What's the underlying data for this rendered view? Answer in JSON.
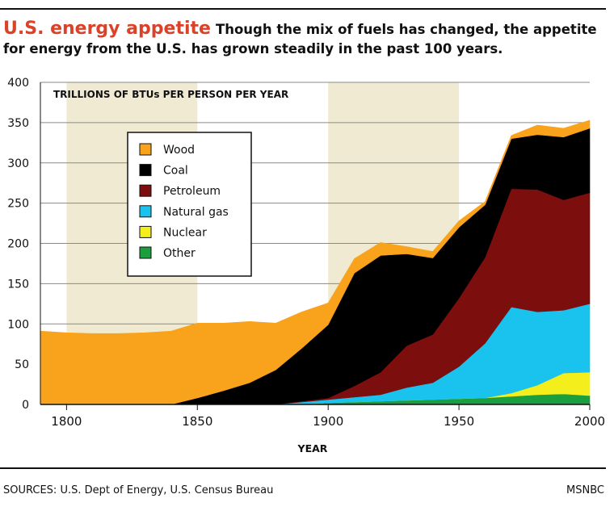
{
  "header": {
    "title": "U.S. energy appetite",
    "subtitle": "Though the mix of fuels has changed, the appetite for energy from the U.S. has grown steadily in the past 100 years."
  },
  "footer": {
    "sources": "SOURCES: U.S. Dept of Energy, U.S. Census Bureau",
    "credit": "MSNBC"
  },
  "chart_data": {
    "type": "area",
    "stacked": true,
    "title": "U.S. energy appetite",
    "subtitle": "Though the mix of fuels has changed, the appetite for energy from the U.S. has grown steadily in the past 100 years.",
    "unit_label": "TRILLIONS OF BTUs PER PERSON PER YEAR",
    "xlabel": "YEAR",
    "ylabel": "",
    "xlim": [
      1790,
      2000
    ],
    "ylim": [
      0,
      400
    ],
    "x_ticks": [
      1800,
      1850,
      1900,
      1950,
      2000
    ],
    "y_ticks": [
      0,
      50,
      100,
      150,
      200,
      250,
      300,
      350,
      400
    ],
    "grid": "horizontal",
    "shaded_bands": [
      [
        1800,
        1850
      ],
      [
        1900,
        1950
      ]
    ],
    "legend_position": "upper-left",
    "x": [
      1790,
      1800,
      1810,
      1820,
      1830,
      1840,
      1850,
      1860,
      1870,
      1880,
      1890,
      1900,
      1910,
      1920,
      1930,
      1940,
      1950,
      1960,
      1970,
      1980,
      1990,
      2000
    ],
    "series": [
      {
        "name": "Other",
        "color": "#1a9e3e",
        "values": [
          0,
          0,
          0,
          0,
          0,
          0,
          0,
          0,
          0,
          0,
          0,
          2,
          3,
          4,
          5,
          6,
          7,
          8,
          10,
          12,
          13,
          11
        ]
      },
      {
        "name": "Nuclear",
        "color": "#f4ee1c",
        "values": [
          0,
          0,
          0,
          0,
          0,
          0,
          0,
          0,
          0,
          0,
          0,
          0,
          0,
          0,
          0,
          0,
          0,
          0,
          4,
          12,
          26,
          29
        ]
      },
      {
        "name": "Natural gas",
        "color": "#19c3ee",
        "values": [
          0,
          0,
          0,
          0,
          0,
          0,
          0,
          0,
          0,
          0,
          3,
          4,
          6,
          8,
          16,
          21,
          40,
          68,
          107,
          91,
          78,
          85
        ]
      },
      {
        "name": "Petroleum",
        "color": "#7d0e0e",
        "values": [
          0,
          0,
          0,
          0,
          0,
          0,
          0,
          0,
          0,
          0,
          1,
          2,
          14,
          28,
          52,
          60,
          85,
          107,
          147,
          152,
          137,
          138
        ]
      },
      {
        "name": "Coal",
        "color": "#000000",
        "values": [
          0,
          0,
          0,
          0,
          0,
          0,
          8,
          17,
          27,
          43,
          66,
          91,
          140,
          145,
          114,
          95,
          88,
          65,
          62,
          68,
          78,
          80
        ]
      },
      {
        "name": "Wood",
        "color": "#f9a21b",
        "values": [
          91,
          89,
          88,
          88,
          89,
          91,
          93,
          84,
          76,
          58,
          45,
          27,
          18,
          16,
          9,
          8,
          8,
          4,
          4,
          12,
          11,
          10
        ]
      }
    ],
    "legend_order": [
      "Wood",
      "Coal",
      "Petroleum",
      "Natural gas",
      "Nuclear",
      "Other"
    ]
  }
}
